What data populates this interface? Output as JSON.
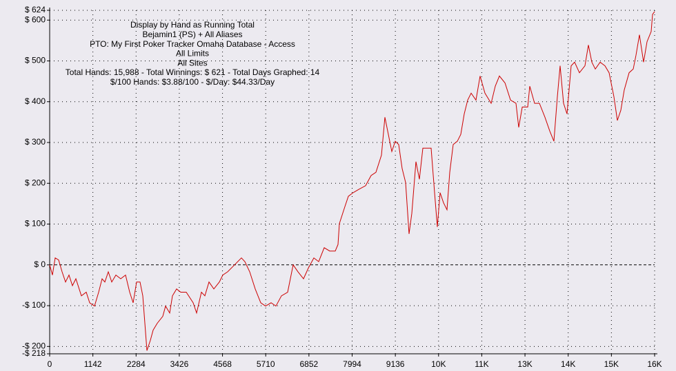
{
  "chart_data": {
    "type": "line",
    "annotations": [
      "Display by Hand as Running Total",
      "Bejamin1 (PS) + All Aliases",
      "PTO: My First Poker Tracker Omaha Database - Access",
      "All Limits",
      "All Sites",
      "Total Hands: 15,988 - Total Winnings: $ 621 - Total Days Graphed: 14",
      "$/100 Hands: $3.88/100 - $/Day: $44.33/Day"
    ],
    "xlim": [
      0,
      15988
    ],
    "ylim": [
      -218,
      624
    ],
    "xticks": [
      0,
      1142,
      2284,
      3426,
      4568,
      5710,
      6852,
      7994,
      9136,
      {
        "value": 10278,
        "label": "10K"
      },
      {
        "value": 11420,
        "label": "11K"
      },
      {
        "value": 12562,
        "label": "13K"
      },
      {
        "value": 13704,
        "label": "14K"
      },
      {
        "value": 14846,
        "label": "15K"
      },
      {
        "value": 15988,
        "label": "16K"
      }
    ],
    "yticks": [
      {
        "value": 624,
        "label": "$ 624"
      },
      {
        "value": 600,
        "label": "$ 600"
      },
      {
        "value": 500,
        "label": "$ 500"
      },
      {
        "value": 400,
        "label": "$ 400"
      },
      {
        "value": 300,
        "label": "$ 300"
      },
      {
        "value": 200,
        "label": "$ 200"
      },
      {
        "value": 100,
        "label": "$ 100"
      },
      {
        "value": 0,
        "label": "$ 0"
      },
      {
        "value": -100,
        "label": "-$ 100"
      },
      {
        "value": -200,
        "label": "-$ 200"
      },
      {
        "value": -218,
        "label": "-$ 218"
      }
    ],
    "grid": true,
    "series": [
      {
        "color": "#cc0000",
        "x": [
          0,
          73,
          146,
          237,
          328,
          419,
          510,
          602,
          693,
          839,
          966,
          1057,
          1185,
          1294,
          1385,
          1458,
          1549,
          1641,
          1750,
          1878,
          2005,
          2115,
          2206,
          2297,
          2388,
          2461,
          2516,
          2570,
          2662,
          2735,
          2844,
          2990,
          3063,
          3172,
          3245,
          3354,
          3464,
          3610,
          3792,
          3883,
          4011,
          4102,
          4211,
          4339,
          4485,
          4576,
          4703,
          4886,
          5068,
          5159,
          5287,
          5433,
          5578,
          5706,
          5852,
          5980,
          6125,
          6290,
          6435,
          6563,
          6709,
          6836,
          6982,
          7110,
          7256,
          7401,
          7547,
          7620,
          7657,
          7803,
          7894,
          8021,
          8167,
          8349,
          8495,
          8623,
          8769,
          8860,
          8933,
          9042,
          9133,
          9224,
          9316,
          9407,
          9498,
          9571,
          9680,
          9771,
          9863,
          9990,
          10081,
          10172,
          10245,
          10318,
          10409,
          10501,
          10574,
          10665,
          10774,
          10865,
          10956,
          11048,
          11139,
          11266,
          11376,
          11504,
          11668,
          11777,
          11887,
          12033,
          12179,
          12324,
          12397,
          12489,
          12634,
          12689,
          12816,
          12944,
          13090,
          13217,
          13327,
          13418,
          13491,
          13582,
          13673,
          13783,
          13874,
          14001,
          14147,
          14238,
          14329,
          14421,
          14548,
          14676,
          14785,
          14913,
          15004,
          15095,
          15186,
          15314,
          15423,
          15496,
          15587,
          15697,
          15788,
          15897,
          15933,
          15988
        ],
        "values": [
          0,
          -25,
          17,
          12,
          -17,
          -42,
          -25,
          -51,
          -34,
          -76,
          -67,
          -93,
          -101,
          -67,
          -34,
          -42,
          -17,
          -42,
          -25,
          -34,
          -25,
          -67,
          -93,
          -42,
          -42,
          -76,
          -143,
          -210,
          -185,
          -160,
          -143,
          -126,
          -101,
          -118,
          -76,
          -59,
          -67,
          -67,
          -93,
          -118,
          -67,
          -76,
          -42,
          -59,
          -42,
          -25,
          -17,
          0,
          17,
          8,
          -17,
          -59,
          -93,
          -101,
          -93,
          -101,
          -76,
          -67,
          0,
          -17,
          -34,
          -8,
          17,
          8,
          42,
          34,
          34,
          50,
          101,
          143,
          168,
          177,
          185,
          194,
          219,
          227,
          269,
          362,
          328,
          278,
          303,
          295,
          236,
          202,
          76,
          126,
          253,
          210,
          286,
          286,
          286,
          177,
          93,
          177,
          152,
          135,
          227,
          295,
          303,
          320,
          370,
          404,
          421,
          404,
          463,
          421,
          396,
          438,
          463,
          446,
          404,
          396,
          337,
          387,
          387,
          438,
          396,
          396,
          362,
          328,
          303,
          412,
          488,
          396,
          370,
          488,
          497,
          471,
          488,
          539,
          497,
          480,
          497,
          488,
          471,
          412,
          354,
          379,
          429,
          471,
          480,
          514,
          564,
          497,
          547,
          572,
          614,
          621
        ]
      }
    ]
  }
}
